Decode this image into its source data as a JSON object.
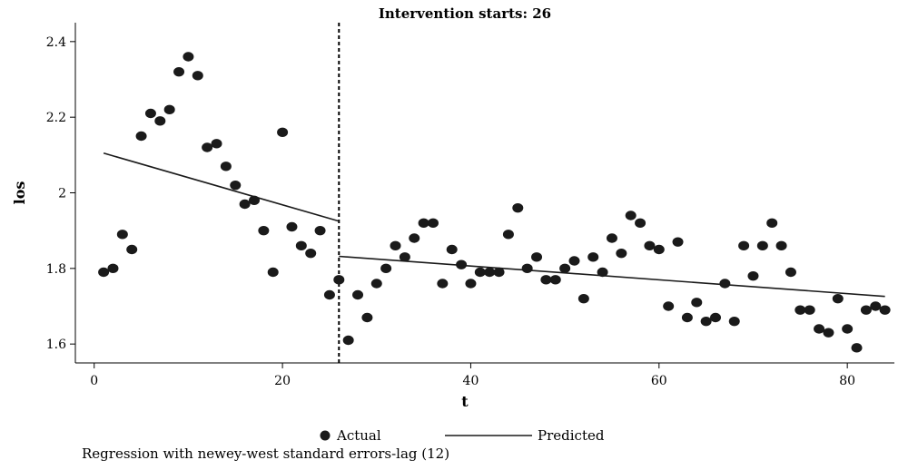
{
  "chart_data": {
    "type": "scatter",
    "title": "Intervention starts: 26",
    "xlabel": "t",
    "ylabel": "los",
    "xlim": [
      -2,
      85
    ],
    "ylim": [
      1.55,
      2.45
    ],
    "xticks": [
      0,
      20,
      40,
      60,
      80
    ],
    "yticks": [
      1.6,
      1.8,
      2,
      2.2,
      2.4
    ],
    "ytick_labels": [
      "1.6",
      "1.8",
      "2",
      "2.2",
      "2.4"
    ],
    "grid": false,
    "intervention_x": 26,
    "legend": {
      "position": "bottom",
      "entries": [
        "Actual",
        "Predicted"
      ]
    },
    "note": "Regression with newey-west standard errors-lag (12)",
    "series": [
      {
        "name": "Actual",
        "kind": "scatter",
        "color": "#1a1a1a",
        "points": [
          [
            1,
            1.79
          ],
          [
            2,
            1.8
          ],
          [
            3,
            1.89
          ],
          [
            4,
            1.85
          ],
          [
            5,
            2.15
          ],
          [
            6,
            2.21
          ],
          [
            7,
            2.19
          ],
          [
            8,
            2.22
          ],
          [
            9,
            2.32
          ],
          [
            10,
            2.36
          ],
          [
            11,
            2.31
          ],
          [
            12,
            2.12
          ],
          [
            13,
            2.13
          ],
          [
            14,
            2.07
          ],
          [
            15,
            2.02
          ],
          [
            16,
            1.97
          ],
          [
            17,
            1.98
          ],
          [
            18,
            1.9
          ],
          [
            19,
            1.79
          ],
          [
            20,
            2.16
          ],
          [
            21,
            1.91
          ],
          [
            22,
            1.86
          ],
          [
            23,
            1.84
          ],
          [
            24,
            1.9
          ],
          [
            25,
            1.73
          ],
          [
            26,
            1.77
          ],
          [
            27,
            1.61
          ],
          [
            28,
            1.73
          ],
          [
            29,
            1.67
          ],
          [
            30,
            1.76
          ],
          [
            31,
            1.8
          ],
          [
            32,
            1.86
          ],
          [
            33,
            1.83
          ],
          [
            34,
            1.88
          ],
          [
            35,
            1.92
          ],
          [
            36,
            1.92
          ],
          [
            37,
            1.76
          ],
          [
            38,
            1.85
          ],
          [
            39,
            1.81
          ],
          [
            40,
            1.76
          ],
          [
            41,
            1.79
          ],
          [
            42,
            1.79
          ],
          [
            43,
            1.79
          ],
          [
            44,
            1.89
          ],
          [
            45,
            1.96
          ],
          [
            46,
            1.8
          ],
          [
            47,
            1.83
          ],
          [
            48,
            1.77
          ],
          [
            49,
            1.77
          ],
          [
            50,
            1.8
          ],
          [
            51,
            1.82
          ],
          [
            52,
            1.72
          ],
          [
            53,
            1.83
          ],
          [
            54,
            1.79
          ],
          [
            55,
            1.88
          ],
          [
            56,
            1.84
          ],
          [
            57,
            1.94
          ],
          [
            58,
            1.92
          ],
          [
            59,
            1.86
          ],
          [
            60,
            1.85
          ],
          [
            61,
            1.7
          ],
          [
            62,
            1.87
          ],
          [
            63,
            1.67
          ],
          [
            64,
            1.71
          ],
          [
            65,
            1.66
          ],
          [
            66,
            1.67
          ],
          [
            67,
            1.76
          ],
          [
            68,
            1.66
          ],
          [
            69,
            1.86
          ],
          [
            70,
            1.78
          ],
          [
            71,
            1.86
          ],
          [
            72,
            1.92
          ],
          [
            73,
            1.86
          ],
          [
            74,
            1.79
          ],
          [
            75,
            1.69
          ],
          [
            76,
            1.69
          ],
          [
            77,
            1.64
          ],
          [
            78,
            1.63
          ],
          [
            79,
            1.72
          ],
          [
            80,
            1.64
          ],
          [
            81,
            1.59
          ],
          [
            82,
            1.69
          ],
          [
            83,
            1.7
          ],
          [
            84,
            1.69
          ]
        ]
      },
      {
        "name": "Predicted",
        "kind": "line",
        "color": "#1a1a1a",
        "segments": [
          [
            [
              1,
              2.105
            ],
            [
              26,
              1.925
            ]
          ],
          [
            [
              26,
              1.832
            ],
            [
              84,
              1.726
            ]
          ]
        ]
      }
    ]
  }
}
